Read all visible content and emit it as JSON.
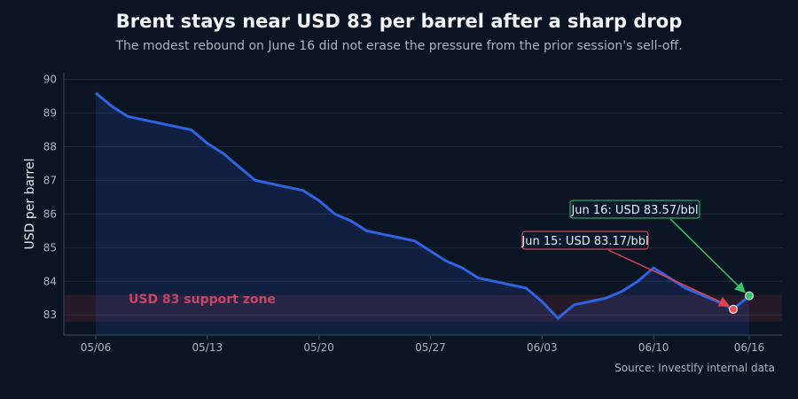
{
  "title": "Brent stays near USD 83 per barrel after a sharp drop",
  "subtitle": "The modest rebound on June 16 did not erase the pressure from the prior session's sell-off.",
  "source": "Source: Investify internal data",
  "colors": {
    "background": "#0b1423",
    "line": "#2f63e0",
    "area": "#12234a",
    "zone": "#e0434f",
    "jun15_marker": "#f0505a",
    "jun16_marker": "#35c46a",
    "grid": "#1d2a3d"
  },
  "chart_data": {
    "type": "line",
    "title": "Brent stays near USD 83 per barrel after a sharp drop",
    "xlabel": "",
    "ylabel": "USD per barrel",
    "ylim": [
      82.4,
      90.2
    ],
    "yticks": [
      83,
      84,
      85,
      86,
      87,
      88,
      89,
      90
    ],
    "xtick_labels": [
      "05/06",
      "05/13",
      "05/20",
      "05/27",
      "06/03",
      "06/10",
      "06/16"
    ],
    "xtick_dates": [
      "2024-05-06",
      "2024-05-13",
      "2024-05-20",
      "2024-05-27",
      "2024-06-03",
      "2024-06-10",
      "2024-06-16"
    ],
    "grid": true,
    "series": [
      {
        "x": [
          "2024-05-06",
          "2024-05-07",
          "2024-05-08",
          "2024-05-09",
          "2024-05-10",
          "2024-05-11",
          "2024-05-12",
          "2024-05-13",
          "2024-05-14",
          "2024-05-15",
          "2024-05-16",
          "2024-05-17",
          "2024-05-18",
          "2024-05-19",
          "2024-05-20",
          "2024-05-21",
          "2024-05-22",
          "2024-05-23",
          "2024-05-24",
          "2024-05-25",
          "2024-05-26",
          "2024-05-27",
          "2024-05-28",
          "2024-05-29",
          "2024-05-30",
          "2024-05-31",
          "2024-06-01",
          "2024-06-02",
          "2024-06-03",
          "2024-06-04",
          "2024-06-05",
          "2024-06-06",
          "2024-06-07",
          "2024-06-08",
          "2024-06-09",
          "2024-06-10",
          "2024-06-11",
          "2024-06-12",
          "2024-06-13",
          "2024-06-14",
          "2024-06-15",
          "2024-06-16"
        ],
        "values": [
          89.6,
          89.2,
          88.9,
          88.8,
          88.7,
          88.6,
          88.5,
          88.1,
          87.8,
          87.4,
          87.0,
          86.9,
          86.8,
          86.7,
          86.4,
          86.0,
          85.8,
          85.5,
          85.4,
          85.3,
          85.2,
          84.9,
          84.6,
          84.4,
          84.1,
          84.0,
          83.9,
          83.8,
          83.4,
          82.9,
          83.3,
          83.4,
          83.5,
          83.7,
          84.0,
          84.4,
          84.1,
          83.8,
          83.6,
          83.4,
          83.17,
          83.57
        ]
      }
    ],
    "reference_band": {
      "label": "USD 83 support zone",
      "range": [
        82.8,
        83.6
      ]
    },
    "annotations": [
      {
        "text": "Jun 15: USD 83.17/bbl",
        "x": "2024-06-15",
        "y": 83.17,
        "color": "#f0505a"
      },
      {
        "text": "Jun 16: USD 83.57/bbl",
        "x": "2024-06-16",
        "y": 83.57,
        "color": "#35c46a"
      }
    ]
  }
}
